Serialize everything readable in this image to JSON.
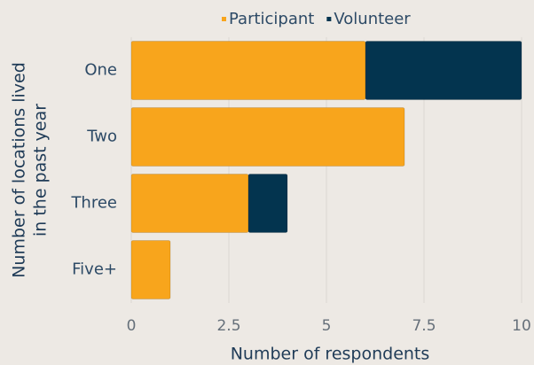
{
  "chart_data": {
    "type": "stacked_barh",
    "xlabel": "Number of respondents",
    "ylabel": [
      "Number of locations lived",
      "in the past year"
    ],
    "categories": [
      "One",
      "Two",
      "Three",
      "Five+"
    ],
    "series": [
      {
        "name": "Participant",
        "color": "#f8a51c",
        "values": [
          6,
          7,
          3,
          1
        ]
      },
      {
        "name": "Volunteer",
        "color": "#03344f",
        "values": [
          4,
          0,
          1,
          0
        ]
      }
    ],
    "xlim": [
      0,
      10
    ],
    "xticks": [
      0,
      2.5,
      5,
      7.5,
      10
    ],
    "grid": true,
    "legend": "top"
  }
}
